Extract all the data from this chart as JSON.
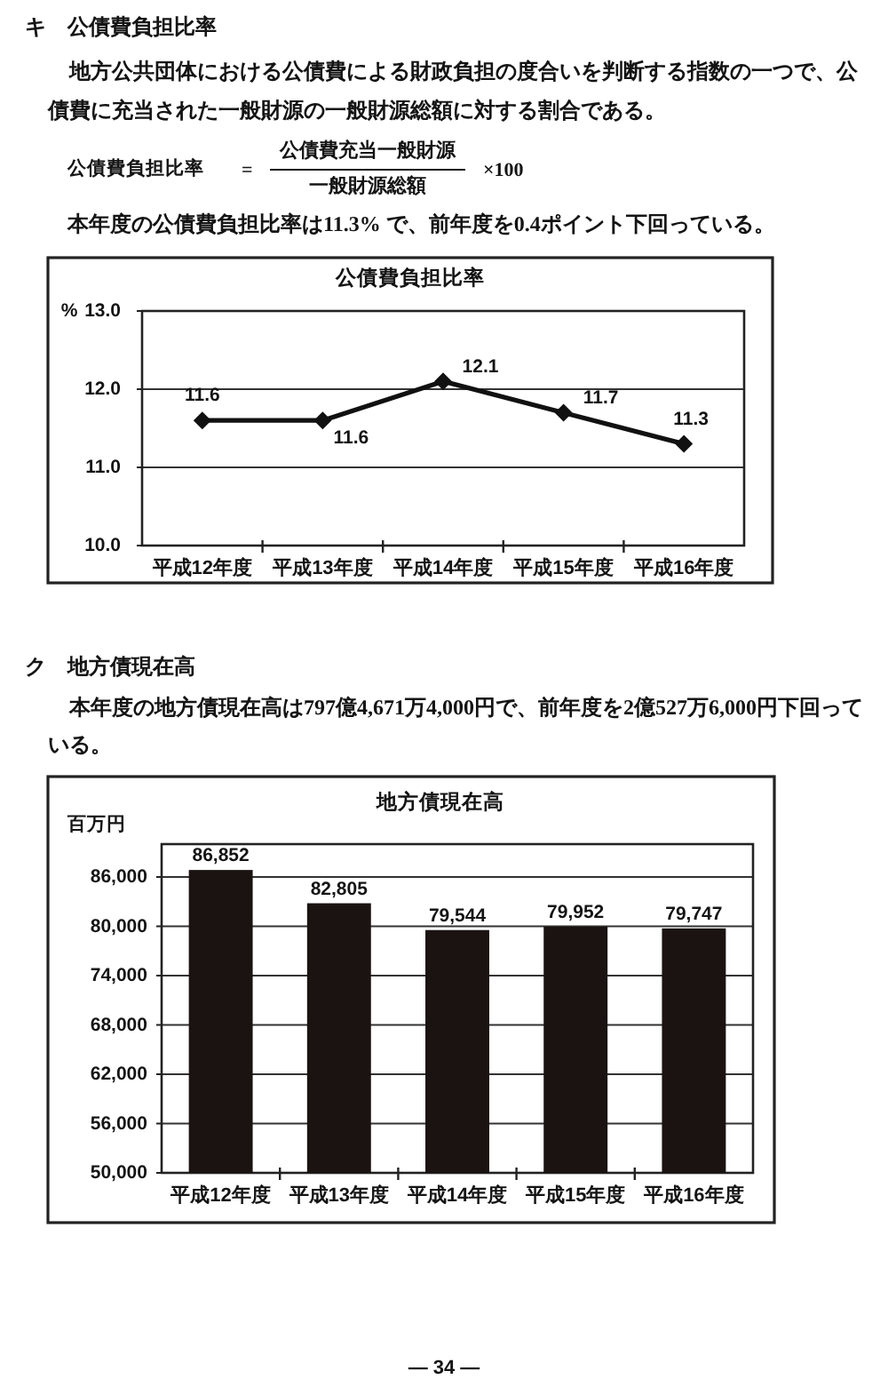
{
  "chart_data": [
    {
      "type": "line",
      "title": "公債費負担比率",
      "ylabel": "%",
      "categories": [
        "平成12年度",
        "平成13年度",
        "平成14年度",
        "平成15年度",
        "平成16年度"
      ],
      "series": [
        {
          "color": "#111111",
          "values": [
            11.6,
            11.6,
            12.1,
            11.7,
            11.3
          ]
        }
      ],
      "ylim": [
        10,
        13
      ],
      "yticks": [
        {
          "value": 10,
          "label": "10.0"
        },
        {
          "value": 11,
          "label": "11.0"
        },
        {
          "value": 12,
          "label": "12.0"
        },
        {
          "value": 13,
          "label": "13.0"
        }
      ],
      "grid": "y",
      "marker": "diamond",
      "data_labels": true,
      "annotations": [
        "キ　公債費負担比率",
        "地方公共団体における公債費による財政負担の度合いを判断する指数の一つで、公債費に充当された一般財源の一般財源総額に対する割合である。",
        "公債費負担比率",
        "=",
        "公債費充当一般財源",
        "一般財源総額",
        "×100",
        "本年度の公債費負担比率は11.3% で、前年度を0.4ポイント下回っている。"
      ]
    },
    {
      "type": "bar",
      "title": "地方債現在高",
      "ylabel": "百万円",
      "categories": [
        "平成12年度",
        "平成13年度",
        "平成14年度",
        "平成15年度",
        "平成16年度"
      ],
      "values": [
        86852,
        82805,
        79544,
        79952,
        79747
      ],
      "value_labels": [
        "86,852",
        "82,805",
        "79,544",
        "79,952",
        "79,747"
      ],
      "color": "#1a1311",
      "ylim": [
        50000,
        90000
      ],
      "yticks": [
        {
          "value": 50000,
          "label": "50,000"
        },
        {
          "value": 56000,
          "label": "56,000"
        },
        {
          "value": 62000,
          "label": "62,000"
        },
        {
          "value": 68000,
          "label": "68,000"
        },
        {
          "value": 74000,
          "label": "74,000"
        },
        {
          "value": 80000,
          "label": "80,000"
        },
        {
          "value": 86000,
          "label": "86,000"
        }
      ],
      "grid": "y",
      "annotations": [
        "ク　地方債現在高",
        "本年度の地方債現在高は797億4,671万4,000円で、前年度を2億527万6,000円下回っている。",
        "— 34 —"
      ]
    }
  ]
}
